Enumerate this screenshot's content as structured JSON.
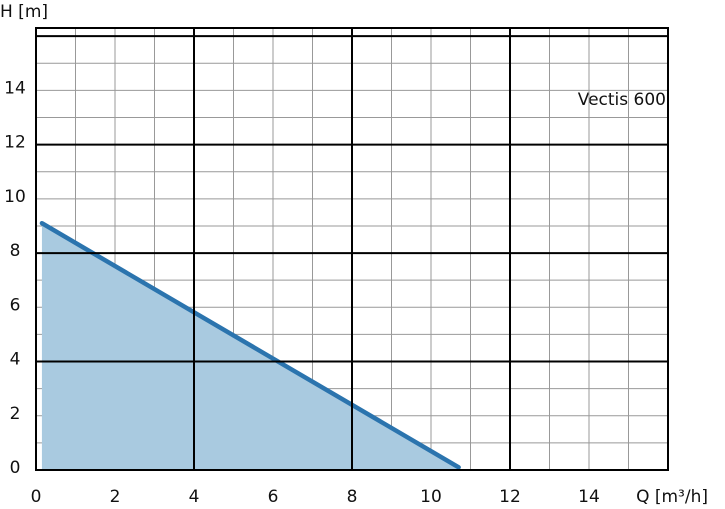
{
  "chart_data": {
    "type": "area",
    "x_label": "Q [m³/h]",
    "y_label": "H [m]",
    "annotation": "Vectis 600",
    "x": [
      0.15,
      10.7
    ],
    "values": [
      9.1,
      0.1
    ],
    "color": "#2b74ae",
    "fill_color": "#a9cae0",
    "xlim": [
      0,
      16
    ],
    "ylim": [
      0,
      16.3
    ],
    "xticks": [
      0,
      2,
      4,
      6,
      8,
      10,
      12,
      14
    ],
    "yticks": [
      0,
      2,
      4,
      6,
      8,
      10,
      12,
      14
    ],
    "xgrid": [
      1,
      2,
      3,
      4,
      5,
      6,
      7,
      8,
      9,
      10,
      11,
      12,
      13,
      14,
      15,
      16
    ],
    "ygrid": [
      1,
      2,
      3,
      4,
      5,
      6,
      7,
      8,
      9,
      10,
      11,
      12,
      13,
      14,
      15,
      16
    ],
    "major_step": 4
  }
}
